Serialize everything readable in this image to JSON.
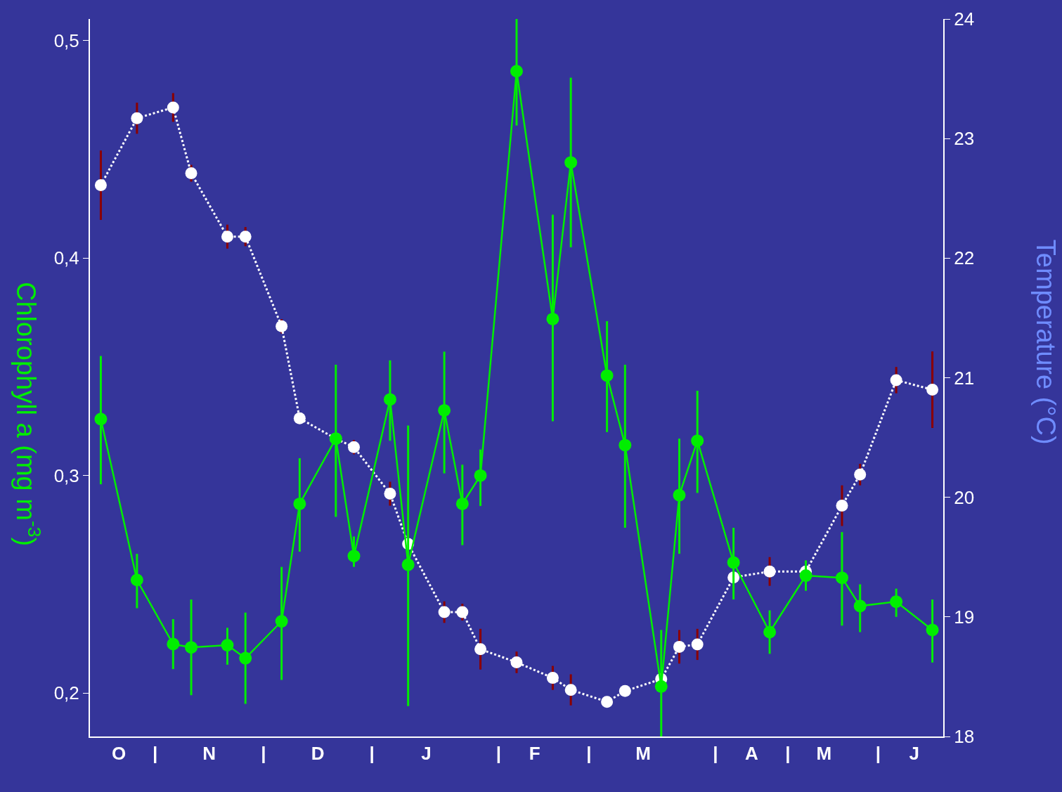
{
  "chart_data": {
    "type": "line",
    "ylabel": "Chlorophyll a (mg m$^{-3}$)",
    "y2label": "Temperature (°C)",
    "categories": [
      null,
      "O",
      null,
      "|",
      null,
      null,
      "N",
      null,
      null,
      "|",
      null,
      null,
      "D",
      null,
      null,
      "|",
      null,
      null,
      "J",
      null,
      null,
      null,
      "|",
      null,
      "F",
      null,
      null,
      "|",
      null,
      null,
      "M",
      null,
      null,
      null,
      "|",
      null,
      "A",
      null,
      "|",
      null,
      "M",
      null,
      null,
      "|",
      null,
      "J",
      null
    ],
    "ylim": [
      0.18,
      0.51
    ],
    "yticks": [
      {
        "value": 0.2,
        "label": "0,2"
      },
      {
        "value": 0.3,
        "label": "0,3"
      },
      {
        "value": 0.4,
        "label": "0,4"
      },
      {
        "value": 0.5,
        "label": "0,5"
      }
    ],
    "y2lim": [
      18,
      24
    ],
    "y2ticks": [
      18,
      19,
      20,
      21,
      22,
      23,
      24
    ],
    "grid": false,
    "marker": "circle",
    "series": [
      {
        "axis": "y2",
        "color": "#ffffff",
        "line_style": "dotted",
        "values": [
          22.61,
          null,
          23.17,
          null,
          23.26,
          22.71,
          null,
          22.18,
          22.18,
          null,
          21.43,
          20.66,
          null,
          20.49,
          20.42,
          null,
          20.03,
          19.61,
          null,
          19.04,
          19.04,
          18.73,
          null,
          18.62,
          null,
          18.49,
          18.39,
          null,
          18.29,
          18.38,
          null,
          18.48,
          18.75,
          18.77,
          null,
          19.33,
          null,
          19.38,
          null,
          19.38,
          null,
          19.93,
          20.19,
          null,
          20.98,
          null,
          20.9
        ],
        "errors": [
          0.29,
          null,
          0.13,
          null,
          0.12,
          0.07,
          null,
          0.1,
          0.08,
          null,
          0.06,
          null,
          null,
          null,
          0.06,
          null,
          0.1,
          null,
          null,
          0.09,
          0.07,
          0.17,
          null,
          0.09,
          null,
          0.1,
          0.13,
          null,
          null,
          null,
          null,
          null,
          0.14,
          0.13,
          null,
          null,
          null,
          0.12,
          null,
          null,
          null,
          0.17,
          0.09,
          null,
          0.11,
          null,
          0.32
        ]
      },
      {
        "axis": "y",
        "color": "#00ee00",
        "line_style": "solid",
        "values": [
          0.326,
          null,
          0.252,
          null,
          0.2225,
          0.221,
          null,
          0.222,
          0.216,
          null,
          0.233,
          0.287,
          null,
          0.317,
          0.263,
          null,
          0.335,
          0.259,
          null,
          0.33,
          0.287,
          0.3,
          null,
          0.486,
          null,
          0.372,
          0.444,
          null,
          0.346,
          0.314,
          null,
          0.203,
          0.291,
          0.316,
          null,
          0.26,
          null,
          0.228,
          null,
          0.254,
          null,
          0.253,
          0.24,
          null,
          0.242,
          null,
          0.229
        ],
        "errors": [
          [
            0.296,
            0.355
          ],
          null,
          [
            0.239,
            0.264
          ],
          null,
          [
            0.211,
            0.234
          ],
          [
            0.199,
            0.243
          ],
          null,
          [
            0.213,
            0.23
          ],
          [
            0.195,
            0.237
          ],
          null,
          [
            0.206,
            0.258
          ],
          [
            0.265,
            0.308
          ],
          null,
          [
            0.281,
            0.351
          ],
          [
            0.258,
            0.272
          ],
          null,
          [
            0.316,
            0.353
          ],
          [
            0.194,
            0.323
          ],
          null,
          [
            0.301,
            0.357
          ],
          [
            0.268,
            0.305
          ],
          [
            0.286,
            0.312
          ],
          null,
          [
            0.461,
            0.51
          ],
          null,
          [
            0.325,
            0.42
          ],
          [
            0.405,
            0.483
          ],
          null,
          [
            0.32,
            0.371
          ],
          [
            0.276,
            0.351
          ],
          null,
          [
            0.18,
            0.229
          ],
          [
            0.264,
            0.317
          ],
          [
            0.292,
            0.339
          ],
          null,
          [
            0.243,
            0.276
          ],
          null,
          [
            0.218,
            0.238
          ],
          null,
          [
            0.247,
            0.261
          ],
          null,
          [
            0.231,
            0.274
          ],
          [
            0.228,
            0.25
          ],
          null,
          [
            0.235,
            0.248
          ],
          null,
          [
            0.214,
            0.243
          ]
        ]
      }
    ]
  }
}
